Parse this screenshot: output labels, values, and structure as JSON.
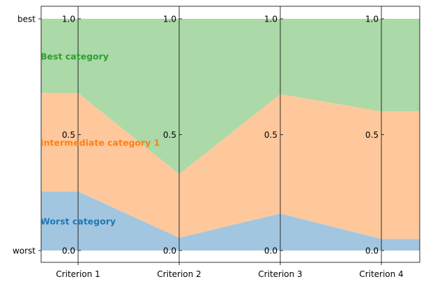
{
  "chart_data": {
    "type": "area",
    "title": "",
    "xlabel": "",
    "ylabel": "",
    "criteria": [
      "Criterion 1",
      "Criterion 2",
      "Criterion 3",
      "Criterion 4"
    ],
    "outer_axis": {
      "ticks": [
        "best",
        "worst"
      ]
    },
    "criterion_ticks": [
      "1.0",
      "0.5",
      "0.0"
    ],
    "ylim": [
      0,
      1
    ],
    "boundaries": {
      "worst_upper": [
        0.255,
        0.055,
        0.16,
        0.05
      ],
      "intermediate_upper": [
        0.68,
        0.33,
        0.675,
        0.6
      ]
    },
    "categories": [
      {
        "name": "Worst category",
        "color": "#a3c6e0",
        "label_color": "#1f77b4"
      },
      {
        "name": "Intermediate category 1",
        "color": "#ffc89c",
        "label_color": "#ff7f0e"
      },
      {
        "name": "Best category",
        "color": "#abd9a8",
        "label_color": "#2ca02c"
      }
    ]
  }
}
